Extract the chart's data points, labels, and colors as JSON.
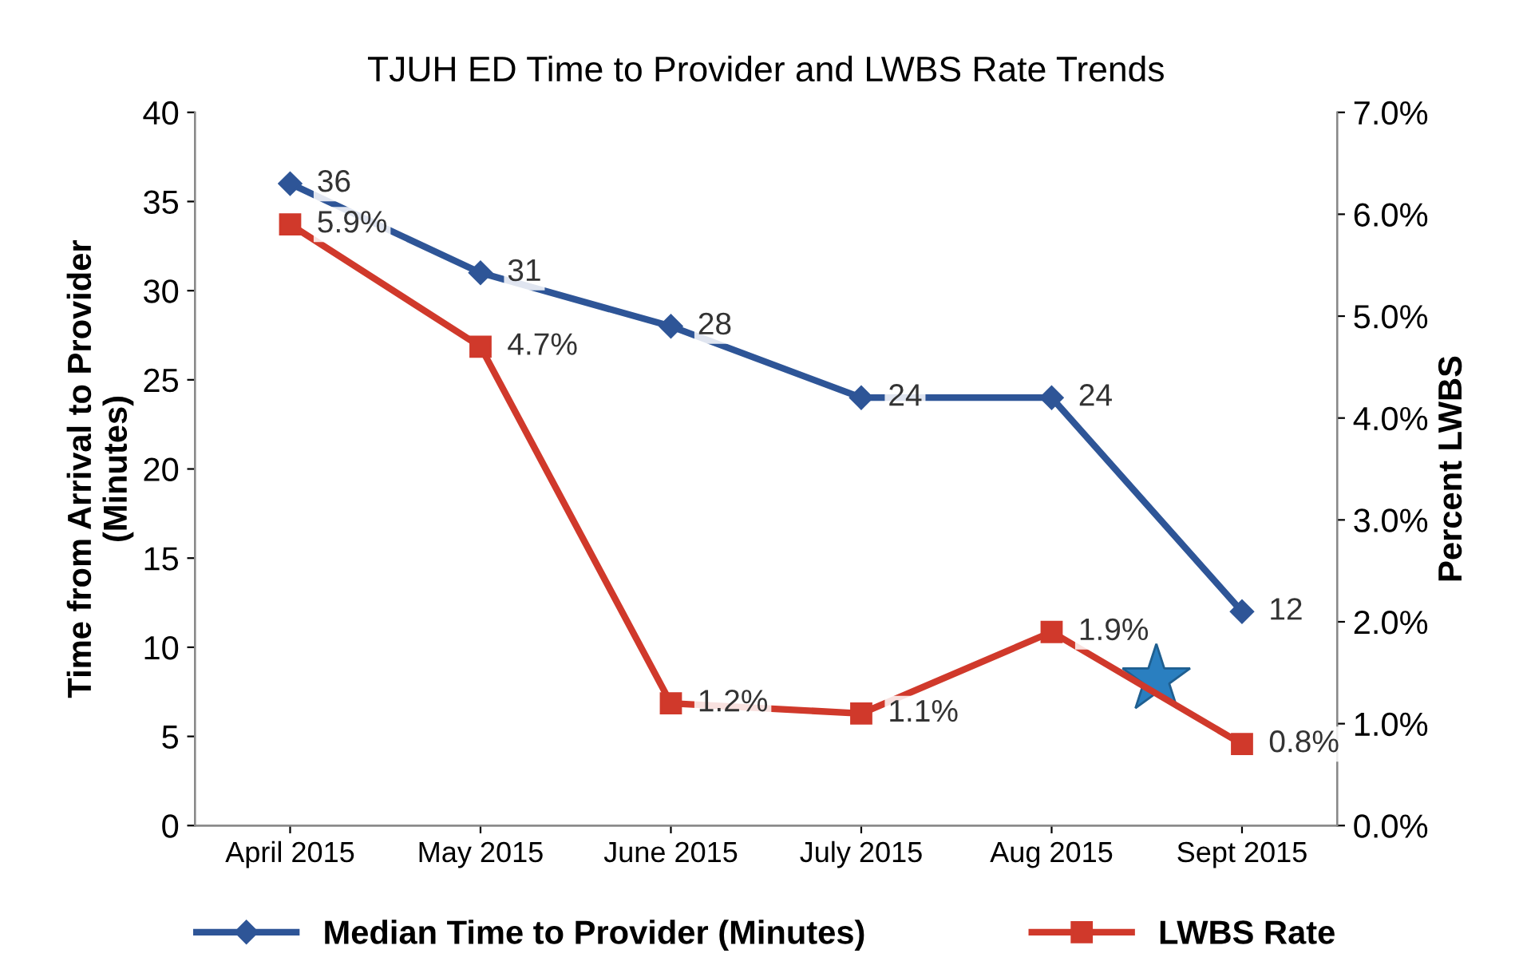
{
  "chart_data": {
    "type": "line",
    "title": "TJUH ED Time to Provider and LWBS Rate Trends",
    "categories": [
      "April 2015",
      "May 2015",
      "June 2015",
      "July 2015",
      "Aug 2015",
      "Sept 2015"
    ],
    "ylabel": "Time from Arrival to Provider\n(Minutes)",
    "y2label": "Percent LWBS",
    "ylim": [
      0,
      40
    ],
    "yticks": [
      0,
      5,
      10,
      15,
      20,
      25,
      30,
      35,
      40
    ],
    "y2lim": [
      0,
      7
    ],
    "y2ticks": [
      {
        "value": 0,
        "label": "0.0%"
      },
      {
        "value": 1,
        "label": "1.0%"
      },
      {
        "value": 2,
        "label": "2.0%"
      },
      {
        "value": 3,
        "label": "3.0%"
      },
      {
        "value": 4,
        "label": "4.0%"
      },
      {
        "value": 5,
        "label": "5.0%"
      },
      {
        "value": 6,
        "label": "6.0%"
      },
      {
        "value": 7,
        "label": "7.0%"
      }
    ],
    "series": [
      {
        "name": "Median Time to Provider (Minutes)",
        "color": "#2e5597",
        "marker": "diamond",
        "values": [
          36,
          31,
          28,
          24,
          24,
          12
        ],
        "value_labels": [
          "36",
          "31",
          "28",
          "24",
          "24",
          "12"
        ]
      },
      {
        "name": "LWBS Rate",
        "color": "#d0392b",
        "marker": "square",
        "axis": "y2",
        "values": [
          5.9,
          4.7,
          1.2,
          1.1,
          1.9,
          0.8
        ],
        "value_labels": [
          "5.9%",
          "4.7%",
          "1.2%",
          "1.1%",
          "1.9%",
          "0.8%"
        ]
      }
    ],
    "grid": false,
    "legend": "bottom"
  }
}
